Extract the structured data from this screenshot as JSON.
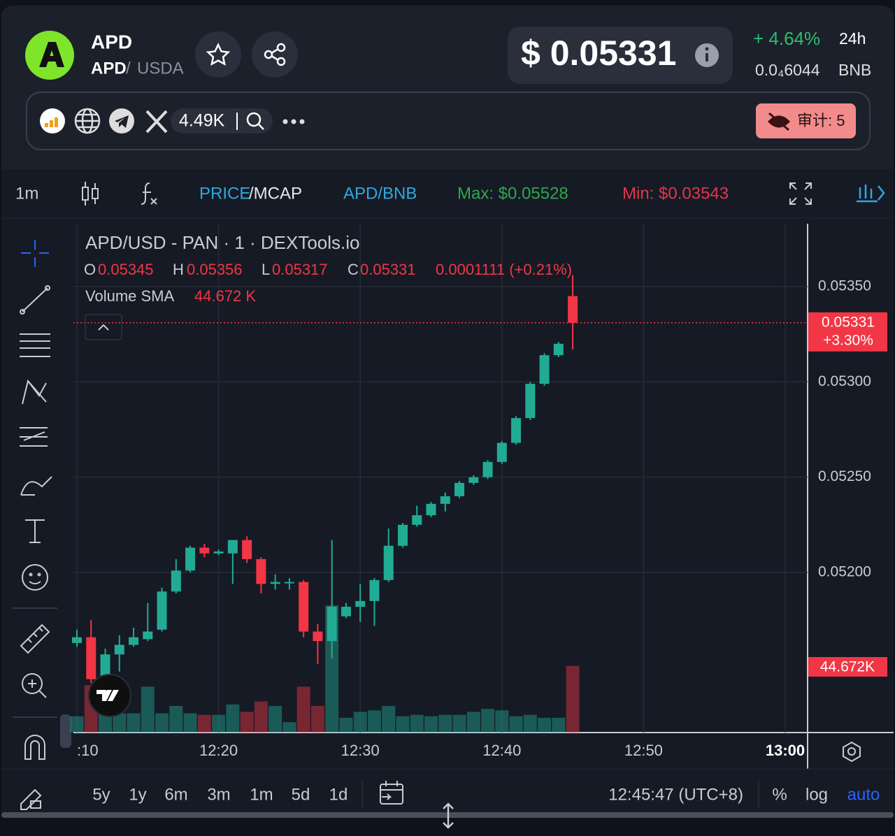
{
  "header": {
    "name": "APD",
    "pair_base": "APD",
    "pair_separator": "/",
    "pair_quote": "USDA",
    "price": "$ 0.05331",
    "change": "+ 4.64%",
    "period": "24h",
    "bnb_price": "0.0₄6044",
    "bnb_unit": "BNB",
    "followers": "4.49K",
    "audit": "审计: 5"
  },
  "toolbar": {
    "interval": "1m",
    "price_tab": "PRICE",
    "mcap_tab": "/MCAP",
    "pair": "APD/BNB",
    "max": "Max: $0.05528",
    "min": "Min: $0.03543"
  },
  "chart_data": {
    "type": "candlestick",
    "title": "APD/USD - PAN · 1 · DEXTools.io",
    "ohlc_labels": [
      "O",
      "H",
      "L",
      "C"
    ],
    "legend_change": "0.0001111 (+0.21%)",
    "volume_sma_name": "Volume SMA",
    "volume_sma_label": "44.672 K",
    "volume_sma_marker": "44.672K",
    "last_change": "+3.30%",
    "up_color": "#22ab94",
    "down_color": "#f23645",
    "x": [
      "12:10",
      "12:11",
      "12:12",
      "12:13",
      "12:14",
      "12:15",
      "12:16",
      "12:17",
      "12:18",
      "12:19",
      "12:20",
      "12:21",
      "12:22",
      "12:23",
      "12:24",
      "12:25",
      "12:26",
      "12:27",
      "12:28",
      "12:29",
      "12:30",
      "12:31",
      "12:32",
      "12:33",
      "12:34",
      "12:35",
      "12:36",
      "12:37",
      "12:38",
      "12:39",
      "12:40",
      "12:41",
      "12:42",
      "12:43",
      "12:44",
      "12:45"
    ],
    "open": [
      0.05163,
      0.05166,
      0.05145,
      0.05157,
      0.05162,
      0.05165,
      0.0517,
      0.0519,
      0.05201,
      0.05213,
      0.0521,
      0.0521,
      0.05217,
      0.05207,
      0.05194,
      0.05195,
      0.05195,
      0.05169,
      0.05164,
      0.05177,
      0.05182,
      0.05185,
      0.05196,
      0.05214,
      0.05225,
      0.0523,
      0.05236,
      0.0524,
      0.05247,
      0.0525,
      0.05258,
      0.05268,
      0.05281,
      0.05299,
      0.05314,
      0.05345
    ],
    "high": [
      0.0517,
      0.05175,
      0.0516,
      0.05167,
      0.05171,
      0.05184,
      0.05192,
      0.05207,
      0.05214,
      0.05215,
      0.05212,
      0.05217,
      0.05219,
      0.05208,
      0.05199,
      0.05197,
      0.05196,
      0.05173,
      0.05217,
      0.05184,
      0.05194,
      0.05197,
      0.05223,
      0.05226,
      0.05235,
      0.05237,
      0.05242,
      0.05248,
      0.05251,
      0.05259,
      0.05269,
      0.05282,
      0.053,
      0.05315,
      0.05321,
      0.05356
    ],
    "low": [
      0.05161,
      0.05142,
      0.05144,
      0.05148,
      0.05161,
      0.05164,
      0.05169,
      0.05189,
      0.052,
      0.05208,
      0.05209,
      0.05194,
      0.05205,
      0.05189,
      0.05191,
      0.05191,
      0.05166,
      0.05152,
      0.05155,
      0.05176,
      0.05174,
      0.05172,
      0.05195,
      0.05213,
      0.05224,
      0.05229,
      0.05232,
      0.05239,
      0.05246,
      0.05249,
      0.05257,
      0.05267,
      0.0528,
      0.05298,
      0.05313,
      0.05317
    ],
    "close": [
      0.05166,
      0.05144,
      0.05157,
      0.05162,
      0.05166,
      0.05169,
      0.0519,
      0.05201,
      0.05213,
      0.0521,
      0.05211,
      0.05217,
      0.05207,
      0.05194,
      0.05195,
      0.05195,
      0.05169,
      0.05164,
      0.05182,
      0.05182,
      0.05185,
      0.05196,
      0.05214,
      0.05225,
      0.0523,
      0.05236,
      0.0524,
      0.05247,
      0.0525,
      0.05258,
      0.05268,
      0.05281,
      0.05299,
      0.05314,
      0.0532,
      0.05331
    ],
    "volume": [
      11000,
      32000,
      13000,
      13000,
      13000,
      31000,
      13000,
      18000,
      13000,
      12000,
      12000,
      19000,
      14000,
      21000,
      18000,
      7000,
      31000,
      18000,
      86000,
      10000,
      14000,
      15000,
      18000,
      11000,
      12000,
      11000,
      12000,
      12000,
      14000,
      16000,
      15000,
      11000,
      12000,
      10000,
      10000,
      45000
    ],
    "ylim": [
      0.05116,
      0.05383
    ],
    "yticks": [
      {
        "value": 0.052,
        "label": "0.05200"
      },
      {
        "value": 0.0525,
        "label": "0.05250"
      },
      {
        "value": 0.053,
        "label": "0.05300"
      },
      {
        "value": 0.0535,
        "label": "0.05350"
      }
    ],
    "xlim": [
      "12:10",
      "13:00"
    ],
    "xticks": [
      {
        "value": "12:10",
        "label": ":10"
      },
      "12:20",
      "12:30",
      "12:40",
      "12:50",
      "13:00"
    ],
    "grid": true
  },
  "footer": {
    "ranges": [
      "5y",
      "1y",
      "6m",
      "3m",
      "1m",
      "5d",
      "1d"
    ],
    "clock": "12:45:47 (UTC+8)",
    "percent": "%",
    "log": "log",
    "auto": "auto"
  }
}
